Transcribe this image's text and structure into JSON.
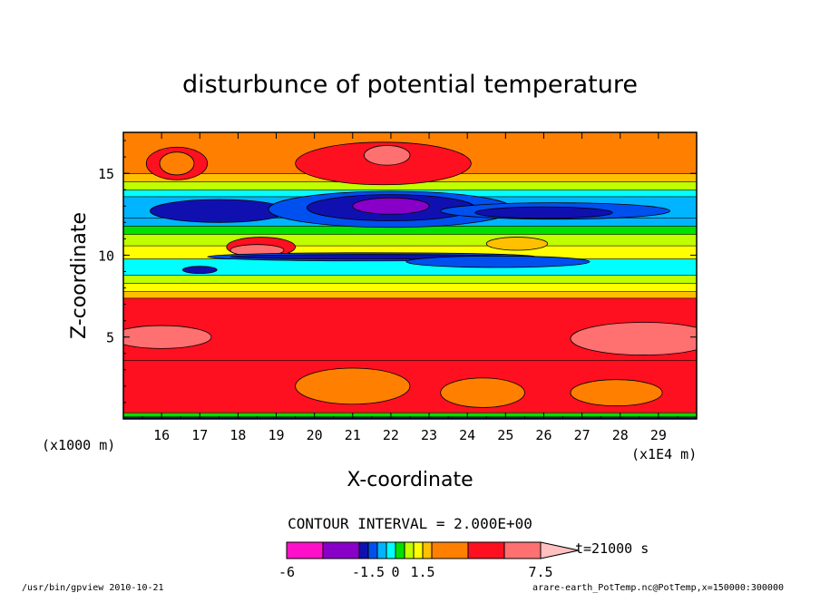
{
  "chart_data": {
    "type": "heatmap",
    "title": "disturbunce of potential temperature",
    "xlabel": "X-coordinate",
    "ylabel": "Z-coordinate",
    "x_unit_left": "(x1000 m)",
    "x_unit_right": "(x1E4 m)",
    "xlim": [
      15.0,
      30.0
    ],
    "ylim": [
      0.0,
      17.5
    ],
    "x_ticks": [
      "16",
      "17",
      "18",
      "19",
      "20",
      "21",
      "22",
      "23",
      "24",
      "25",
      "26",
      "27",
      "28",
      "29"
    ],
    "y_ticks": [
      "5",
      "10",
      "15"
    ],
    "y_tick_values": [
      5,
      10,
      15
    ],
    "contour_interval": "CONTOUR INTERVAL = 2.000E+00",
    "time_label": "t=21000 s",
    "colorbar": {
      "levels": [
        -6,
        -4.5,
        -3,
        -1.5,
        -1,
        -0.5,
        0,
        0.5,
        1,
        1.5,
        3,
        4.5,
        6,
        7.5
      ],
      "tick_labels": [
        "-6",
        "-1.5",
        "0",
        "1.5",
        "7.5"
      ],
      "colors": [
        "#ff10c8",
        "#8800c8",
        "#1010b0",
        "#0050f0",
        "#00b4ff",
        "#00ffff",
        "#00e000",
        "#c0ff00",
        "#ffff00",
        "#ffc000",
        "#ff8000",
        "#ff1020",
        "#ff7070",
        "#ffc0c0"
      ]
    },
    "bands": [
      {
        "z": [
          0.0,
          0.15
        ],
        "value": -3
      },
      {
        "z": [
          0.15,
          0.4
        ],
        "value": 0
      },
      {
        "z": [
          0.4,
          3.6
        ],
        "value": 4.5
      },
      {
        "z": [
          3.6,
          7.4
        ],
        "value": 4.5
      },
      {
        "z": [
          7.4,
          7.8
        ],
        "value": 1.5
      },
      {
        "z": [
          7.8,
          8.3
        ],
        "value": 1
      },
      {
        "z": [
          8.3,
          8.8
        ],
        "value": 0.5
      },
      {
        "z": [
          8.8,
          9.8
        ],
        "value": -0.5
      },
      {
        "z": [
          9.8,
          10.6
        ],
        "value": 1
      },
      {
        "z": [
          10.6,
          11.3
        ],
        "value": 0.5
      },
      {
        "z": [
          11.3,
          11.8
        ],
        "value": 0
      },
      {
        "z": [
          11.8,
          12.3
        ],
        "value": -1
      },
      {
        "z": [
          12.3,
          13.6
        ],
        "value": -1
      },
      {
        "z": [
          13.6,
          14.0
        ],
        "value": -0.5
      },
      {
        "z": [
          14.0,
          14.5
        ],
        "value": 0.5
      },
      {
        "z": [
          14.5,
          15.0
        ],
        "value": 1.5
      },
      {
        "z": [
          15.0,
          17.5
        ],
        "value": 3
      }
    ],
    "features": [
      {
        "x": 16.4,
        "z": 15.6,
        "rx": 0.8,
        "rz": 1.0,
        "value": 4.5
      },
      {
        "x": 16.4,
        "z": 15.6,
        "rx": 0.45,
        "rz": 0.7,
        "value": 3
      },
      {
        "x": 21.8,
        "z": 15.6,
        "rx": 2.3,
        "rz": 1.3,
        "value": 4.5
      },
      {
        "x": 21.9,
        "z": 16.1,
        "rx": 0.6,
        "rz": 0.6,
        "value": 6
      },
      {
        "x": 17.5,
        "z": 12.7,
        "rx": 1.8,
        "rz": 0.7,
        "value": -3
      },
      {
        "x": 22.0,
        "z": 12.8,
        "rx": 3.2,
        "rz": 1.1,
        "value": -1.5
      },
      {
        "x": 22.0,
        "z": 12.9,
        "rx": 2.2,
        "rz": 0.8,
        "value": -3
      },
      {
        "x": 22.0,
        "z": 13.0,
        "rx": 1.0,
        "rz": 0.5,
        "value": -4.5
      },
      {
        "x": 26.3,
        "z": 12.7,
        "rx": 3.0,
        "rz": 0.5,
        "value": -1.5
      },
      {
        "x": 26.0,
        "z": 12.6,
        "rx": 1.8,
        "rz": 0.35,
        "value": -3
      },
      {
        "x": 18.6,
        "z": 10.5,
        "rx": 0.9,
        "rz": 0.6,
        "value": 4.5
      },
      {
        "x": 18.5,
        "z": 10.3,
        "rx": 0.7,
        "rz": 0.35,
        "value": 6
      },
      {
        "x": 21.5,
        "z": 9.9,
        "rx": 4.3,
        "rz": 0.25,
        "value": -1.5
      },
      {
        "x": 21.5,
        "z": 9.9,
        "rx": 3.7,
        "rz": 0.14,
        "value": -3
      },
      {
        "x": 24.8,
        "z": 9.6,
        "rx": 2.4,
        "rz": 0.35,
        "value": -1.5
      },
      {
        "x": 17.0,
        "z": 9.1,
        "rx": 0.45,
        "rz": 0.22,
        "value": -3
      },
      {
        "x": 25.3,
        "z": 10.7,
        "rx": 0.8,
        "rz": 0.4,
        "value": 1.5
      },
      {
        "x": 16.0,
        "z": 5.0,
        "rx": 1.3,
        "rz": 0.7,
        "value": 6
      },
      {
        "x": 28.6,
        "z": 4.9,
        "rx": 1.9,
        "rz": 1.0,
        "value": 6
      },
      {
        "x": 21.0,
        "z": 2.0,
        "rx": 1.5,
        "rz": 1.1,
        "value": 3
      },
      {
        "x": 24.4,
        "z": 1.6,
        "rx": 1.1,
        "rz": 0.9,
        "value": 3
      },
      {
        "x": 27.9,
        "z": 1.6,
        "rx": 1.2,
        "rz": 0.8,
        "value": 3
      }
    ]
  },
  "footer": {
    "left": "/usr/bin/gpview   2010-10-21",
    "right": "arare-earth_PotTemp.nc@PotTemp,x=150000:300000"
  }
}
